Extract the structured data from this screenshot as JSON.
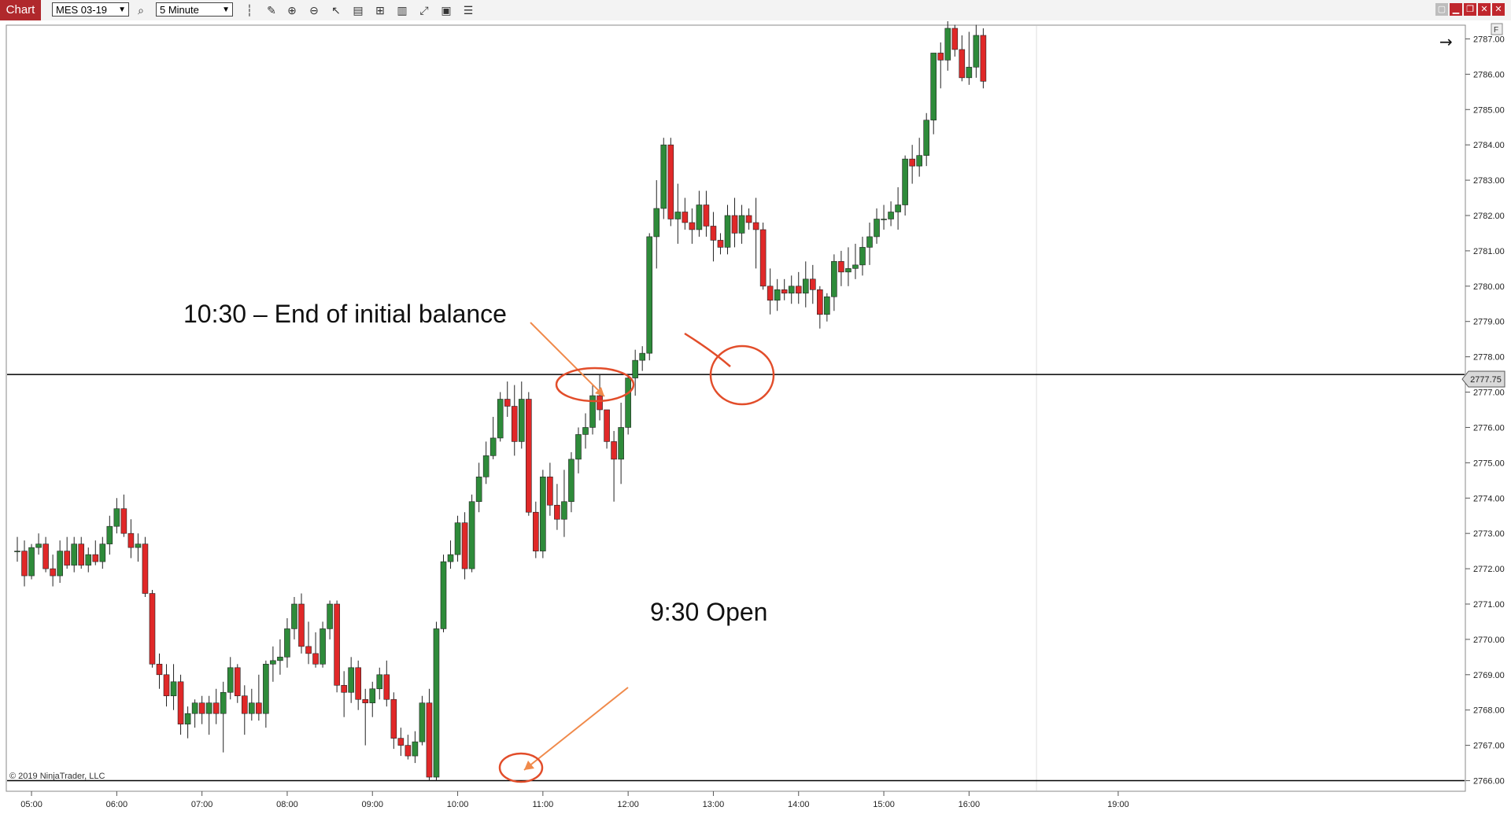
{
  "toolbar": {
    "tab_label": "Chart",
    "instrument": "MES 03-19",
    "interval": "5 Minute",
    "icons": [
      "search-icon",
      "bar-type-icon",
      "draw-icon",
      "zoom-in-icon",
      "zoom-out-icon",
      "pointer-icon",
      "data-box-icon",
      "template-icon",
      "strategy-icon",
      "indicator-icon",
      "properties-icon",
      "list-icon"
    ]
  },
  "window": {
    "buttons": [
      "window-min-icon",
      "window-restore-icon",
      "window-close-icon"
    ]
  },
  "colors": {
    "up": "#2e8b3a",
    "down": "#e02828",
    "annotation": "#e24d2a",
    "arrow": "#f08a4b",
    "grid": "#dedede"
  },
  "copyright": "© 2019 NinjaTrader, LLC",
  "price_tag": "2777.75",
  "chart_data": {
    "type": "candlestick",
    "instrument": "MES 03-19",
    "interval": "5 Minute",
    "ylim": [
      2765.7,
      2787.5
    ],
    "yticks": [
      "2766.00",
      "2767.00",
      "2768.00",
      "2769.00",
      "2770.00",
      "2771.00",
      "2772.00",
      "2773.00",
      "2774.00",
      "2775.00",
      "2776.00",
      "2777.00",
      "2778.00",
      "2779.00",
      "2780.00",
      "2781.00",
      "2782.00",
      "2783.00",
      "2784.00",
      "2785.00",
      "2786.00",
      "2787.00"
    ],
    "xticks": [
      "05:00",
      "06:00",
      "07:00",
      "08:00",
      "09:00",
      "10:00",
      "11:00",
      "12:00",
      "13:00",
      "14:00",
      "15:00",
      "16:00",
      "19:00"
    ],
    "xtick_index": [
      2,
      14,
      26,
      38,
      50,
      62,
      74,
      86,
      98,
      110,
      122,
      134,
      155
    ],
    "vline_index": 143.5,
    "hlines": [
      2777.5,
      2766.0
    ],
    "last_price": 2777.75,
    "candles": [
      [
        2772.5,
        2772.9,
        2772.2,
        2772.5
      ],
      [
        2772.5,
        2772.8,
        2771.5,
        2771.8
      ],
      [
        2771.8,
        2772.7,
        2771.7,
        2772.6
      ],
      [
        2772.6,
        2773.0,
        2772.4,
        2772.7
      ],
      [
        2772.7,
        2772.9,
        2771.9,
        2772.0
      ],
      [
        2772.0,
        2772.4,
        2771.5,
        2771.8
      ],
      [
        2771.8,
        2772.8,
        2771.6,
        2772.5
      ],
      [
        2772.5,
        2772.9,
        2772.0,
        2772.1
      ],
      [
        2772.1,
        2772.9,
        2771.9,
        2772.7
      ],
      [
        2772.7,
        2772.9,
        2772.0,
        2772.1
      ],
      [
        2772.1,
        2772.6,
        2771.9,
        2772.4
      ],
      [
        2772.4,
        2772.8,
        2772.1,
        2772.2
      ],
      [
        2772.2,
        2772.9,
        2772.0,
        2772.7
      ],
      [
        2772.7,
        2773.5,
        2772.4,
        2773.2
      ],
      [
        2773.2,
        2774.0,
        2773.0,
        2773.7
      ],
      [
        2773.7,
        2774.1,
        2772.9,
        2773.0
      ],
      [
        2773.0,
        2773.4,
        2772.3,
        2772.6
      ],
      [
        2772.6,
        2773.0,
        2772.2,
        2772.7
      ],
      [
        2772.7,
        2772.9,
        2771.2,
        2771.3
      ],
      [
        2771.3,
        2771.4,
        2769.2,
        2769.3
      ],
      [
        2769.3,
        2769.6,
        2768.6,
        2769.0
      ],
      [
        2769.0,
        2769.3,
        2768.1,
        2768.4
      ],
      [
        2768.4,
        2769.3,
        2768.0,
        2768.8
      ],
      [
        2768.8,
        2769.0,
        2767.3,
        2767.6
      ],
      [
        2767.6,
        2768.1,
        2767.2,
        2767.9
      ],
      [
        2767.9,
        2768.3,
        2767.5,
        2768.2
      ],
      [
        2768.2,
        2768.4,
        2767.6,
        2767.9
      ],
      [
        2767.9,
        2768.4,
        2767.3,
        2768.2
      ],
      [
        2768.2,
        2768.6,
        2767.6,
        2767.9
      ],
      [
        2767.9,
        2768.8,
        2766.8,
        2768.5
      ],
      [
        2768.5,
        2769.5,
        2768.3,
        2769.2
      ],
      [
        2769.2,
        2769.3,
        2768.2,
        2768.4
      ],
      [
        2768.4,
        2768.7,
        2767.3,
        2767.9
      ],
      [
        2767.9,
        2768.6,
        2767.7,
        2768.2
      ],
      [
        2768.2,
        2769.0,
        2767.7,
        2767.9
      ],
      [
        2767.9,
        2769.4,
        2767.5,
        2769.3
      ],
      [
        2769.3,
        2769.8,
        2768.8,
        2769.4
      ],
      [
        2769.4,
        2770.0,
        2769.0,
        2769.5
      ],
      [
        2769.5,
        2770.6,
        2769.2,
        2770.3
      ],
      [
        2770.3,
        2771.2,
        2770.0,
        2771.0
      ],
      [
        2771.0,
        2771.3,
        2769.6,
        2769.8
      ],
      [
        2769.8,
        2770.5,
        2769.3,
        2769.6
      ],
      [
        2769.6,
        2770.2,
        2769.2,
        2769.3
      ],
      [
        2769.3,
        2770.5,
        2769.2,
        2770.3
      ],
      [
        2770.3,
        2771.1,
        2770.0,
        2771.0
      ],
      [
        2771.0,
        2771.1,
        2768.5,
        2768.7
      ],
      [
        2768.7,
        2769.1,
        2767.8,
        2768.5
      ],
      [
        2768.5,
        2769.5,
        2768.2,
        2769.2
      ],
      [
        2769.2,
        2769.4,
        2768.0,
        2768.3
      ],
      [
        2768.3,
        2768.6,
        2767.0,
        2768.2
      ],
      [
        2768.2,
        2768.8,
        2767.8,
        2768.6
      ],
      [
        2768.6,
        2769.2,
        2768.3,
        2769.0
      ],
      [
        2769.0,
        2769.4,
        2768.1,
        2768.3
      ],
      [
        2768.3,
        2768.5,
        2766.9,
        2767.2
      ],
      [
        2767.2,
        2767.5,
        2766.7,
        2767.0
      ],
      [
        2767.0,
        2767.3,
        2766.6,
        2766.7
      ],
      [
        2766.7,
        2767.4,
        2766.5,
        2767.1
      ],
      [
        2767.1,
        2768.4,
        2767.0,
        2768.2
      ],
      [
        2768.2,
        2768.6,
        2766.0,
        2766.1
      ],
      [
        2766.1,
        2770.5,
        2766.0,
        2770.3
      ],
      [
        2770.3,
        2772.4,
        2770.2,
        2772.2
      ],
      [
        2772.2,
        2772.8,
        2772.0,
        2772.4
      ],
      [
        2772.4,
        2773.5,
        2772.2,
        2773.3
      ],
      [
        2773.3,
        2773.6,
        2771.7,
        2772.0
      ],
      [
        2772.0,
        2774.1,
        2771.9,
        2773.9
      ],
      [
        2773.9,
        2775.0,
        2773.6,
        2774.6
      ],
      [
        2774.6,
        2775.6,
        2774.4,
        2775.2
      ],
      [
        2775.2,
        2776.3,
        2775.1,
        2775.7
      ],
      [
        2775.7,
        2777.0,
        2775.6,
        2776.8
      ],
      [
        2776.8,
        2777.3,
        2776.3,
        2776.6
      ],
      [
        2776.6,
        2777.2,
        2775.2,
        2775.6
      ],
      [
        2775.6,
        2777.3,
        2775.4,
        2776.8
      ],
      [
        2776.8,
        2777.0,
        2773.5,
        2773.6
      ],
      [
        2773.6,
        2773.9,
        2772.3,
        2772.5
      ],
      [
        2772.5,
        2774.8,
        2772.3,
        2774.6
      ],
      [
        2774.6,
        2775.0,
        2773.5,
        2773.8
      ],
      [
        2773.8,
        2774.4,
        2773.1,
        2773.4
      ],
      [
        2773.4,
        2774.8,
        2772.9,
        2773.9
      ],
      [
        2773.9,
        2775.3,
        2773.6,
        2775.1
      ],
      [
        2775.1,
        2776.0,
        2774.7,
        2775.8
      ],
      [
        2775.8,
        2776.4,
        2775.4,
        2776.0
      ],
      [
        2776.0,
        2777.2,
        2775.8,
        2776.9
      ],
      [
        2776.9,
        2777.5,
        2776.2,
        2776.5
      ],
      [
        2776.5,
        2776.5,
        2775.4,
        2775.6
      ],
      [
        2775.6,
        2775.9,
        2773.9,
        2775.1
      ],
      [
        2775.1,
        2776.7,
        2774.4,
        2776.0
      ],
      [
        2776.0,
        2777.5,
        2775.8,
        2777.4
      ],
      [
        2777.4,
        2778.2,
        2776.9,
        2777.9
      ],
      [
        2777.9,
        2778.3,
        2777.6,
        2778.1
      ],
      [
        2778.1,
        2781.5,
        2777.9,
        2781.4
      ],
      [
        2781.4,
        2783.0,
        2780.5,
        2782.2
      ],
      [
        2782.2,
        2784.2,
        2781.9,
        2784.0
      ],
      [
        2784.0,
        2784.2,
        2781.7,
        2781.9
      ],
      [
        2781.9,
        2782.9,
        2781.2,
        2782.1
      ],
      [
        2782.1,
        2782.5,
        2781.6,
        2781.8
      ],
      [
        2781.8,
        2782.2,
        2781.2,
        2781.6
      ],
      [
        2781.6,
        2782.7,
        2781.4,
        2782.3
      ],
      [
        2782.3,
        2782.7,
        2781.4,
        2781.7
      ],
      [
        2781.7,
        2782.1,
        2780.7,
        2781.3
      ],
      [
        2781.3,
        2781.5,
        2780.9,
        2781.1
      ],
      [
        2781.1,
        2782.3,
        2780.9,
        2782.0
      ],
      [
        2782.0,
        2782.5,
        2781.1,
        2781.5
      ],
      [
        2781.5,
        2782.3,
        2781.2,
        2782.0
      ],
      [
        2782.0,
        2782.2,
        2781.6,
        2781.8
      ],
      [
        2781.8,
        2782.5,
        2780.5,
        2781.6
      ],
      [
        2781.6,
        2781.8,
        2779.9,
        2780.0
      ],
      [
        2780.0,
        2780.5,
        2779.2,
        2779.6
      ],
      [
        2779.6,
        2780.2,
        2779.3,
        2779.9
      ],
      [
        2779.9,
        2780.2,
        2779.6,
        2779.8
      ],
      [
        2779.8,
        2780.3,
        2779.5,
        2780.0
      ],
      [
        2780.0,
        2780.4,
        2779.5,
        2779.8
      ],
      [
        2779.8,
        2780.7,
        2779.4,
        2780.2
      ],
      [
        2780.2,
        2780.6,
        2779.5,
        2779.9
      ],
      [
        2779.9,
        2780.0,
        2778.8,
        2779.2
      ],
      [
        2779.2,
        2779.8,
        2779.0,
        2779.7
      ],
      [
        2779.7,
        2780.9,
        2779.3,
        2780.7
      ],
      [
        2780.7,
        2781.0,
        2780.0,
        2780.4
      ],
      [
        2780.4,
        2781.1,
        2780.0,
        2780.5
      ],
      [
        2780.5,
        2781.2,
        2780.2,
        2780.6
      ],
      [
        2780.6,
        2781.4,
        2780.3,
        2781.1
      ],
      [
        2781.1,
        2781.8,
        2780.6,
        2781.4
      ],
      [
        2781.4,
        2782.2,
        2781.2,
        2781.9
      ],
      [
        2781.9,
        2782.3,
        2781.6,
        2781.9
      ],
      [
        2781.9,
        2782.4,
        2781.7,
        2782.1
      ],
      [
        2782.1,
        2782.8,
        2781.6,
        2782.3
      ],
      [
        2782.3,
        2783.7,
        2782.0,
        2783.6
      ],
      [
        2783.6,
        2784.0,
        2782.9,
        2783.4
      ],
      [
        2783.4,
        2784.2,
        2783.1,
        2783.7
      ],
      [
        2783.7,
        2784.9,
        2783.4,
        2784.7
      ],
      [
        2784.7,
        2786.6,
        2784.3,
        2786.6
      ],
      [
        2786.6,
        2786.9,
        2785.6,
        2786.4
      ],
      [
        2786.4,
        2787.5,
        2786.1,
        2787.3
      ],
      [
        2787.3,
        2787.4,
        2786.5,
        2786.7
      ],
      [
        2786.7,
        2787.1,
        2785.8,
        2785.9
      ],
      [
        2785.9,
        2787.2,
        2785.7,
        2786.2
      ],
      [
        2786.2,
        2787.4,
        2785.9,
        2787.1
      ],
      [
        2787.1,
        2787.3,
        2785.6,
        2785.8
      ]
    ]
  },
  "annotations": {
    "ib_label": "10:30 – End of initial balance",
    "open_label": "9:30 Open"
  }
}
